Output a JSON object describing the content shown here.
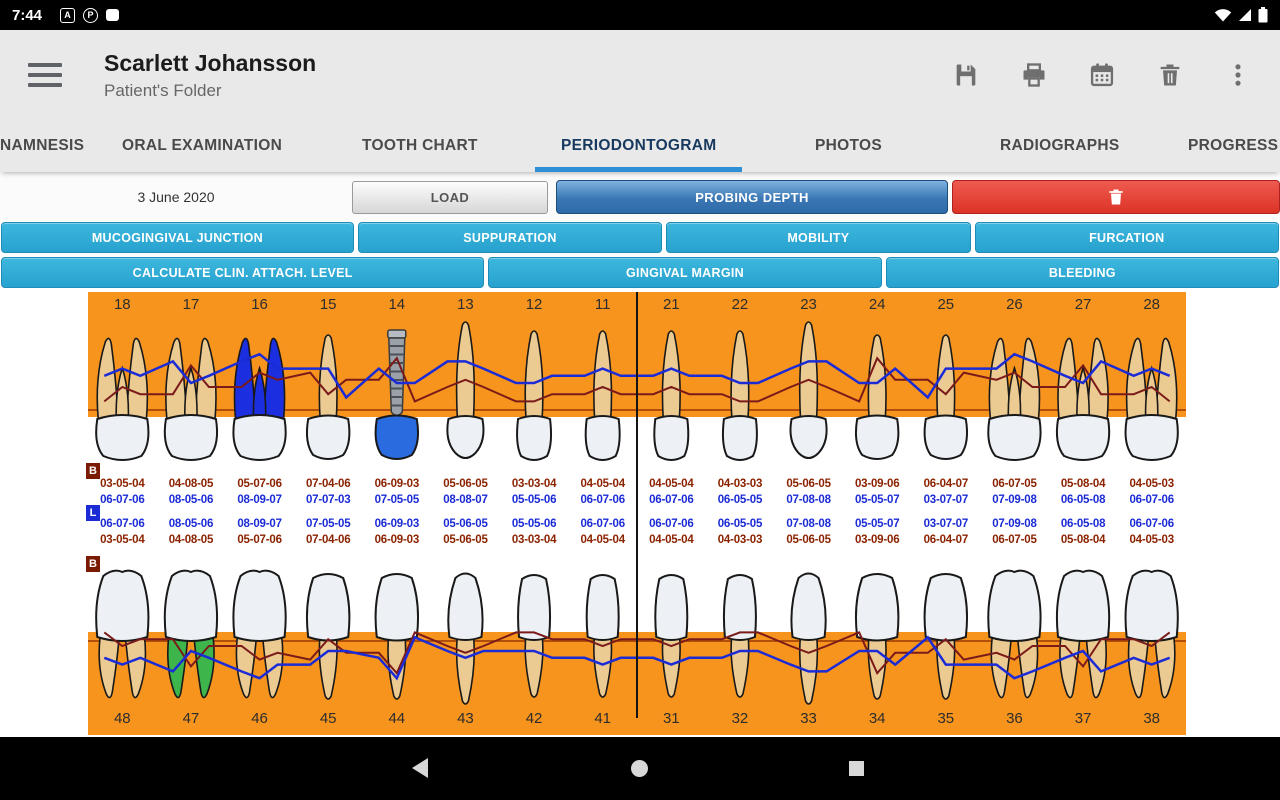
{
  "status_bar": {
    "time": "7:44",
    "app_icons": [
      "A",
      "P"
    ]
  },
  "toolbar": {
    "title": "Scarlett Johansson",
    "subtitle": "Patient's Folder"
  },
  "tabs": [
    {
      "label": "NAMNESIS",
      "selected": false
    },
    {
      "label": "ORAL EXAMINATION",
      "selected": false
    },
    {
      "label": "TOOTH CHART",
      "selected": false
    },
    {
      "label": "PERIODONTOGRAM",
      "selected": true
    },
    {
      "label": "PHOTOS",
      "selected": false
    },
    {
      "label": "RADIOGRAPHS",
      "selected": false
    },
    {
      "label": "PROGRESS",
      "selected": false
    }
  ],
  "controls": {
    "date": "3 June 2020",
    "load": "LOAD",
    "probing_depth": "PROBING DEPTH"
  },
  "tool_buttons": {
    "row1": [
      "MUCOGINGIVAL JUNCTION",
      "SUPPURATION",
      "MOBILITY",
      "FURCATION"
    ],
    "row2": [
      "CALCULATE CLIN. ATTACH. LEVEL",
      "GINGIVAL MARGIN",
      "BLEEDING"
    ]
  },
  "periodontogram": {
    "upper_teeth": [
      "18",
      "17",
      "16",
      "15",
      "14",
      "13",
      "12",
      "11",
      "21",
      "22",
      "23",
      "24",
      "25",
      "26",
      "27",
      "28"
    ],
    "lower_teeth": [
      "48",
      "47",
      "46",
      "45",
      "44",
      "43",
      "42",
      "41",
      "31",
      "32",
      "33",
      "34",
      "35",
      "36",
      "37",
      "38"
    ],
    "labels": {
      "buccal": "B",
      "lingual": "L"
    },
    "upper_buccal": [
      "03-05-04",
      "04-08-05",
      "05-07-06",
      "07-04-06",
      "06-09-03",
      "05-06-05",
      "03-03-04",
      "04-05-04",
      "04-05-04",
      "04-03-03",
      "05-06-05",
      "03-09-06",
      "06-04-07",
      "06-07-05",
      "05-08-04",
      "04-05-03"
    ],
    "upper_lingual": [
      "06-07-06",
      "08-05-06",
      "08-09-07",
      "07-07-03",
      "07-05-05",
      "08-08-07",
      "05-05-06",
      "06-07-06",
      "06-07-06",
      "06-05-05",
      "07-08-08",
      "05-05-07",
      "03-07-07",
      "07-09-08",
      "06-05-08",
      "06-07-06"
    ],
    "lower_lingual": [
      "06-07-06",
      "08-05-06",
      "08-09-07",
      "07-05-05",
      "06-09-03",
      "05-06-05",
      "05-05-06",
      "06-07-06",
      "06-07-06",
      "06-05-05",
      "07-08-08",
      "05-05-07",
      "03-07-07",
      "07-09-08",
      "06-05-08",
      "06-07-06"
    ],
    "lower_buccal": [
      "03-05-04",
      "04-08-05",
      "05-07-06",
      "07-04-06",
      "06-09-03",
      "05-06-05",
      "03-03-04",
      "04-05-04",
      "04-05-04",
      "04-03-03",
      "05-06-05",
      "03-09-06",
      "06-04-07",
      "06-07-05",
      "05-08-04",
      "04-05-03"
    ],
    "features": {
      "endodontic_tooth": "16",
      "implant_tooth": "14",
      "highlighted_tooth": "47"
    }
  },
  "colors": {
    "arch_orange": "#F7941E",
    "tooth_root": "#ECCB93",
    "tooth_crown": "#EDF0F4",
    "endo_blue": "#1B2FE0",
    "implant_gray": "#9AA1A9",
    "highlight_green": "#3DB54A",
    "buccal_text": "#8B2300",
    "lingual_text": "#1B2BD6",
    "teal_button": "#2CA8D4",
    "probing_blue": "#3A77B4",
    "delete_red": "#E23B3B",
    "tab_underline": "#2D8FD5"
  }
}
